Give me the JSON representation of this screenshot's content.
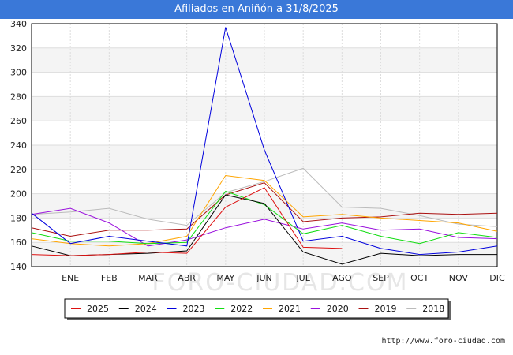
{
  "chart_data": {
    "type": "line",
    "title": "Afiliados en Aniñón a 31/8/2025",
    "xlabel": "",
    "ylabel": "",
    "categories": [
      "",
      "ENE",
      "FEB",
      "MAR",
      "ABR",
      "MAY",
      "JUN",
      "JUL",
      "AGO",
      "SEP",
      "OCT",
      "NOV",
      "DIC"
    ],
    "ylim": [
      140,
      340
    ],
    "yticks": [
      140,
      160,
      180,
      200,
      220,
      240,
      260,
      280,
      300,
      320,
      340
    ],
    "grid": true,
    "legend_position": "bottom",
    "watermark": "FORO-CIUDAD.COM",
    "source": "http://www.foro-ciudad.com",
    "series": [
      {
        "name": "2025",
        "color": "#dd1111",
        "values": [
          150,
          149,
          150,
          152,
          151,
          189,
          205,
          156,
          155,
          null,
          null,
          null,
          null
        ]
      },
      {
        "name": "2024",
        "color": "#000000",
        "values": [
          157,
          149,
          150,
          151,
          153,
          199,
          192,
          152,
          142,
          151,
          149,
          150,
          150
        ]
      },
      {
        "name": "2023",
        "color": "#0000dd",
        "values": [
          184,
          159,
          165,
          161,
          157,
          337,
          236,
          161,
          165,
          155,
          150,
          152,
          157
        ]
      },
      {
        "name": "2022",
        "color": "#11dd11",
        "values": [
          168,
          161,
          161,
          159,
          160,
          202,
          191,
          167,
          174,
          165,
          159,
          168,
          164
        ]
      },
      {
        "name": "2021",
        "color": "#ffa500",
        "values": [
          163,
          159,
          157,
          159,
          165,
          215,
          211,
          181,
          183,
          180,
          178,
          176,
          169
        ]
      },
      {
        "name": "2020",
        "color": "#9a11dd",
        "values": [
          183,
          188,
          176,
          157,
          162,
          172,
          179,
          171,
          176,
          170,
          171,
          164,
          163
        ]
      },
      {
        "name": "2019",
        "color": "#aa1111",
        "values": [
          172,
          165,
          170,
          170,
          171,
          199,
          209,
          177,
          180,
          181,
          184,
          183,
          184
        ]
      },
      {
        "name": "2018",
        "color": "#bbbbbb",
        "values": [
          183,
          185,
          188,
          179,
          174,
          201,
          210,
          221,
          189,
          188,
          182,
          175,
          173
        ]
      }
    ]
  }
}
